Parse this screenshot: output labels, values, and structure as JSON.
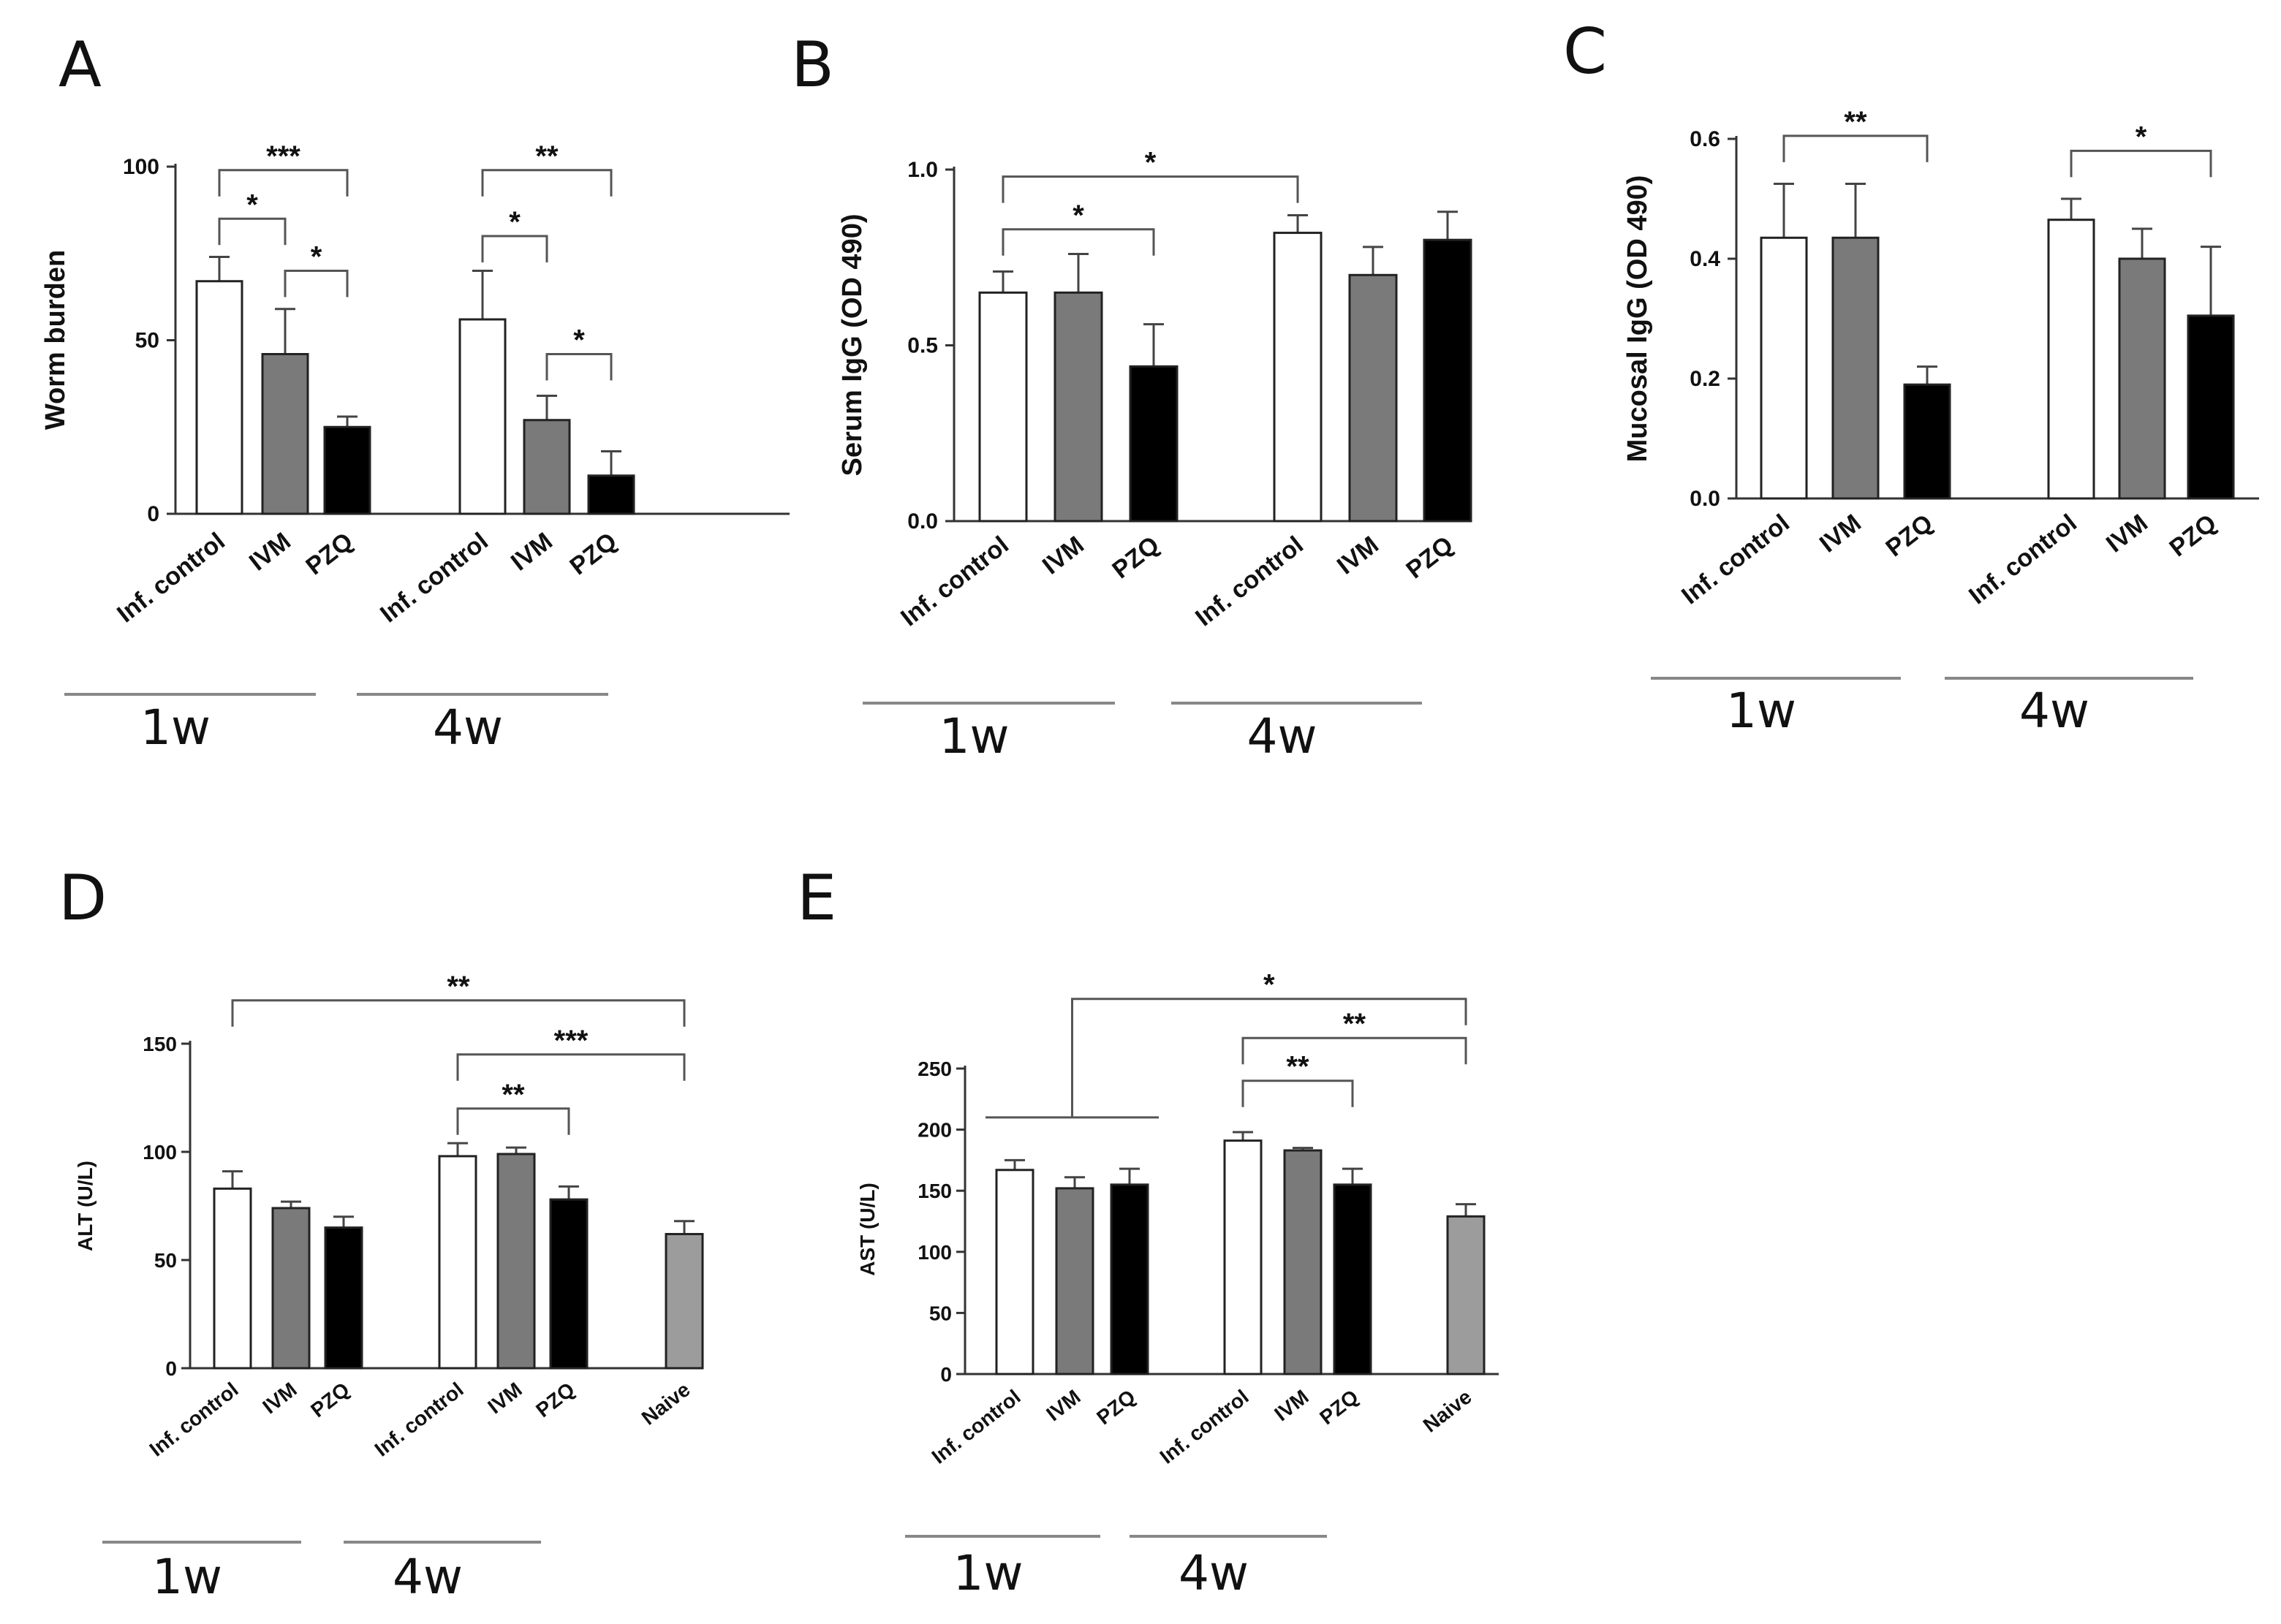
{
  "colors": {
    "Inf. control": "#ffffff",
    "IVM": "#7a7a7a",
    "PZQ": "#000000",
    "Naive": "#9c9c9c",
    "axis": "#333333",
    "bracket": "#555555",
    "group_line": "#888888"
  },
  "chart_data": [
    {
      "panel": "A",
      "type": "bar",
      "ylabel": "Worm burden",
      "ylim": [
        0,
        100
      ],
      "yticks": [
        0,
        50,
        100
      ],
      "groups": [
        {
          "label": "1w",
          "bars": [
            {
              "category": "Inf. control",
              "value": 67,
              "error": 7
            },
            {
              "category": "IVM",
              "value": 46,
              "error": 13
            },
            {
              "category": "PZQ",
              "value": 25,
              "error": 3
            }
          ]
        },
        {
          "label": "4w",
          "bars": [
            {
              "category": "Inf. control",
              "value": 56,
              "error": 14
            },
            {
              "category": "IVM",
              "value": 27,
              "error": 7
            },
            {
              "category": "PZQ",
              "value": 11,
              "error": 7
            }
          ]
        }
      ],
      "significance": [
        {
          "from": [
            0,
            0
          ],
          "to": [
            0,
            2
          ],
          "label": "***",
          "y": 99
        },
        {
          "from": [
            0,
            0
          ],
          "to": [
            0,
            1
          ],
          "label": "*",
          "y": 85
        },
        {
          "from": [
            0,
            1
          ],
          "to": [
            0,
            2
          ],
          "label": "*",
          "y": 70
        },
        {
          "from": [
            1,
            0
          ],
          "to": [
            1,
            2
          ],
          "label": "**",
          "y": 99
        },
        {
          "from": [
            1,
            0
          ],
          "to": [
            1,
            1
          ],
          "label": "*",
          "y": 80
        },
        {
          "from": [
            1,
            1
          ],
          "to": [
            1,
            2
          ],
          "label": "*",
          "y": 46
        }
      ]
    },
    {
      "panel": "B",
      "type": "bar",
      "ylabel": "Serum IgG (OD 490)",
      "ylim": [
        0,
        1.0
      ],
      "yticks": [
        0.0,
        0.5,
        1.0
      ],
      "ytick_labels": [
        "0.0",
        "0.5",
        "1.0"
      ],
      "groups": [
        {
          "label": "1w",
          "bars": [
            {
              "category": "Inf. control",
              "value": 0.65,
              "error": 0.06
            },
            {
              "category": "IVM",
              "value": 0.65,
              "error": 0.11
            },
            {
              "category": "PZQ",
              "value": 0.44,
              "error": 0.12
            }
          ]
        },
        {
          "label": "4w",
          "bars": [
            {
              "category": "Inf. control",
              "value": 0.82,
              "error": 0.05
            },
            {
              "category": "IVM",
              "value": 0.7,
              "error": 0.08
            },
            {
              "category": "PZQ",
              "value": 0.8,
              "error": 0.08
            }
          ]
        }
      ],
      "significance": [
        {
          "from": [
            0,
            0
          ],
          "to": [
            1,
            0
          ],
          "label": "*",
          "y": 0.98
        },
        {
          "from": [
            0,
            0
          ],
          "to": [
            0,
            2
          ],
          "label": "*",
          "y": 0.83
        }
      ]
    },
    {
      "panel": "C",
      "type": "bar",
      "ylabel": "Mucosal IgG (OD 490)",
      "ylim": [
        0,
        0.6
      ],
      "yticks": [
        0.0,
        0.2,
        0.4,
        0.6
      ],
      "ytick_labels": [
        "0.0",
        "0.2",
        "0.4",
        "0.6"
      ],
      "groups": [
        {
          "label": "1w",
          "bars": [
            {
              "category": "Inf. control",
              "value": 0.435,
              "error": 0.09
            },
            {
              "category": "IVM",
              "value": 0.435,
              "error": 0.09
            },
            {
              "category": "PZQ",
              "value": 0.19,
              "error": 0.03
            }
          ]
        },
        {
          "label": "4w",
          "bars": [
            {
              "category": "Inf. control",
              "value": 0.465,
              "error": 0.035
            },
            {
              "category": "IVM",
              "value": 0.4,
              "error": 0.05
            },
            {
              "category": "PZQ",
              "value": 0.305,
              "error": 0.115
            }
          ]
        }
      ],
      "significance": [
        {
          "from": [
            0,
            0
          ],
          "to": [
            0,
            2
          ],
          "label": "**",
          "y": 0.605
        },
        {
          "from": [
            1,
            0
          ],
          "to": [
            1,
            2
          ],
          "label": "*",
          "y": 0.58
        }
      ]
    },
    {
      "panel": "D",
      "type": "bar",
      "ylabel": "ALT (U/L)",
      "ylim": [
        0,
        150
      ],
      "yticks": [
        0,
        50,
        100,
        150
      ],
      "groups": [
        {
          "label": "1w",
          "bars": [
            {
              "category": "Inf. control",
              "value": 83,
              "error": 8
            },
            {
              "category": "IVM",
              "value": 74,
              "error": 3
            },
            {
              "category": "PZQ",
              "value": 65,
              "error": 5
            }
          ]
        },
        {
          "label": "4w",
          "bars": [
            {
              "category": "Inf. control",
              "value": 98,
              "error": 6
            },
            {
              "category": "IVM",
              "value": 99,
              "error": 3
            },
            {
              "category": "PZQ",
              "value": 78,
              "error": 6
            }
          ]
        },
        {
          "label": "",
          "bars": [
            {
              "category": "Naive",
              "value": 62,
              "error": 6
            }
          ]
        }
      ],
      "significance": [
        {
          "from": [
            0,
            0
          ],
          "to": [
            2,
            0
          ],
          "label": "**",
          "y": 170
        },
        {
          "from": [
            1,
            0
          ],
          "to": [
            2,
            0
          ],
          "label": "***",
          "y": 145
        },
        {
          "from": [
            1,
            0
          ],
          "to": [
            1,
            2
          ],
          "label": "**",
          "y": 120
        }
      ]
    },
    {
      "panel": "E",
      "type": "bar",
      "ylabel": "AST (U/L)",
      "ylim": [
        0,
        250
      ],
      "yticks": [
        0,
        50,
        100,
        150,
        200,
        250
      ],
      "groups": [
        {
          "label": "1w",
          "bars": [
            {
              "category": "Inf. control",
              "value": 167,
              "error": 8
            },
            {
              "category": "IVM",
              "value": 152,
              "error": 9
            },
            {
              "category": "PZQ",
              "value": 155,
              "error": 13
            }
          ]
        },
        {
          "label": "4w",
          "bars": [
            {
              "category": "Inf. control",
              "value": 191,
              "error": 7
            },
            {
              "category": "IVM",
              "value": 183,
              "error": 2
            },
            {
              "category": "PZQ",
              "value": 155,
              "error": 13
            }
          ]
        },
        {
          "label": "",
          "bars": [
            {
              "category": "Naive",
              "value": 129,
              "error": 10
            }
          ]
        }
      ],
      "significance": [
        {
          "from": "group0",
          "to": [
            2,
            0
          ],
          "label": "*",
          "y": 307
        },
        {
          "from": [
            1,
            0
          ],
          "to": [
            2,
            0
          ],
          "label": "**",
          "y": 275
        },
        {
          "from": [
            1,
            0
          ],
          "to": [
            1,
            2
          ],
          "label": "**",
          "y": 240
        }
      ]
    }
  ]
}
